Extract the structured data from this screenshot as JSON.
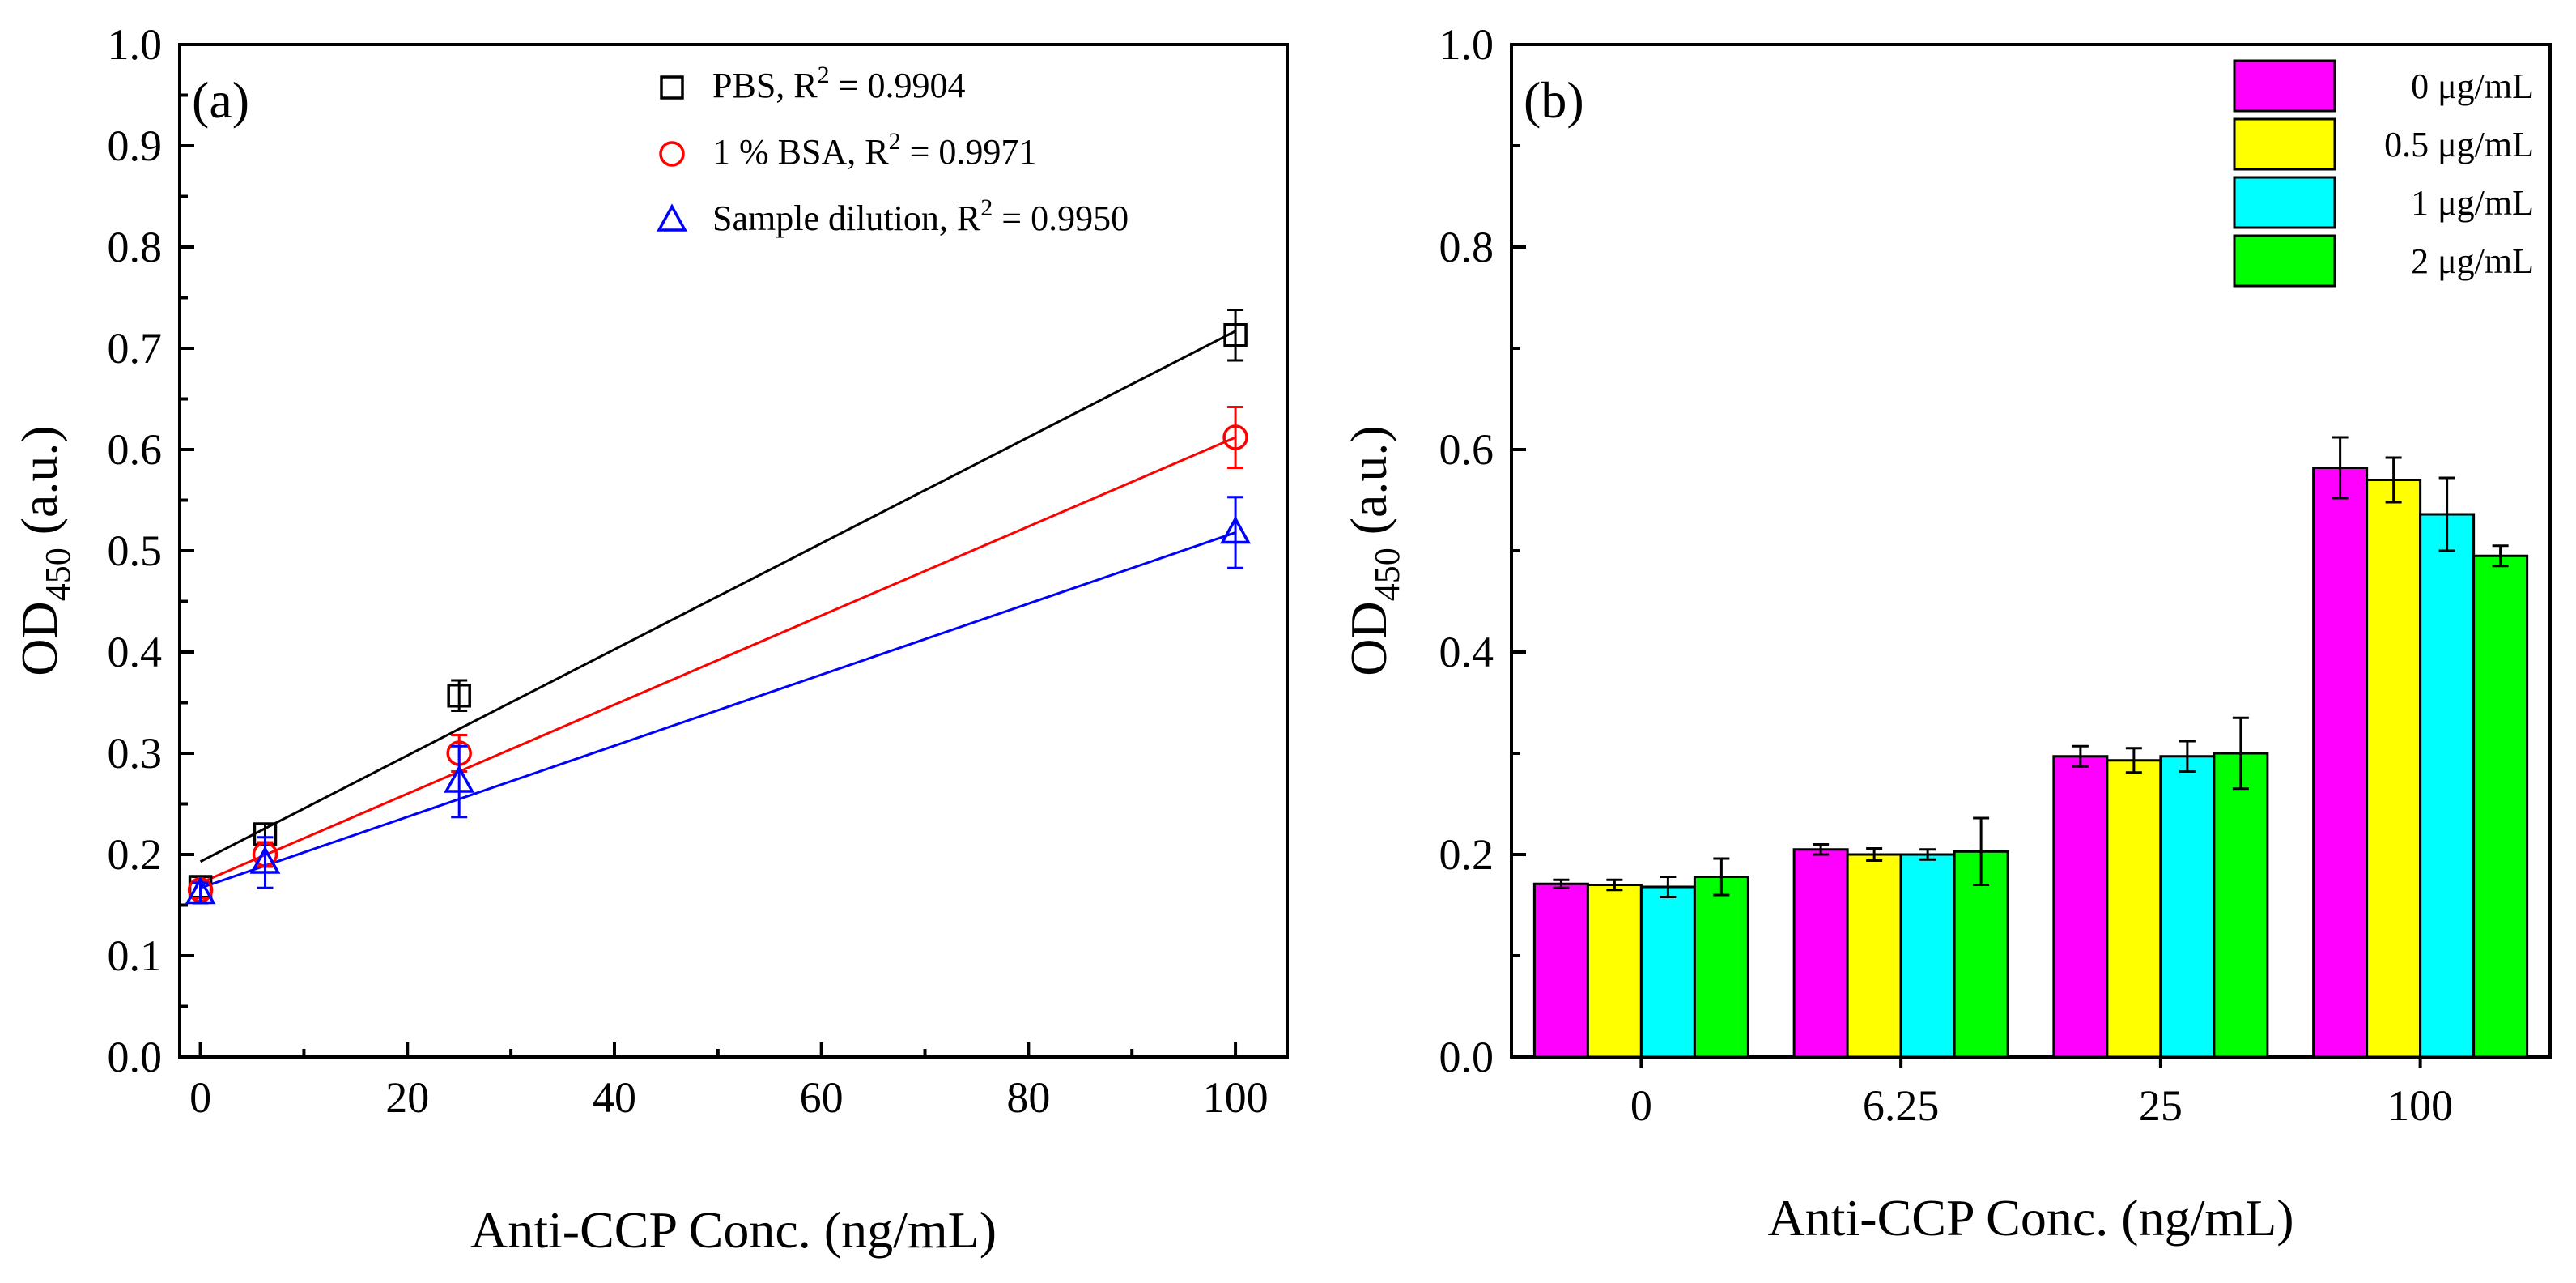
{
  "chart_data": [
    {
      "type": "scatter",
      "panel_label": "(a)",
      "title": "",
      "xlabel": "Anti-CCP Conc. (ng/mL)",
      "ylabel_main": "OD",
      "ylabel_sub": "450",
      "ylabel_unit": " (a.u.)",
      "xlim": [
        -2,
        105
      ],
      "ylim": [
        0.0,
        1.0
      ],
      "x_ticks": [
        0,
        20,
        40,
        60,
        80,
        100
      ],
      "x_tick_labels": [
        "0",
        "20",
        "40",
        "60",
        "80",
        "100"
      ],
      "y_ticks": [
        0.0,
        0.1,
        0.2,
        0.3,
        0.4,
        0.5,
        0.6,
        0.7,
        0.8,
        0.9,
        1.0
      ],
      "y_tick_labels": [
        "0.0",
        "0.1",
        "0.2",
        "0.3",
        "0.4",
        "0.5",
        "0.6",
        "0.7",
        "0.8",
        "0.9",
        "1.0"
      ],
      "legend_position": "top-right",
      "series": [
        {
          "name": "PBS",
          "r2_label": "R",
          "r2_sup": "2",
          "r2_value": " = 0.9904",
          "marker": "square",
          "color": "#000000",
          "x": [
            0,
            6.25,
            25,
            100
          ],
          "y": [
            0.168,
            0.22,
            0.357,
            0.713
          ],
          "err": [
            0.01,
            0.01,
            0.015,
            0.025
          ],
          "fit": {
            "x": [
              0,
              100
            ],
            "y": [
              0.193,
              0.717
            ]
          }
        },
        {
          "name": "1 % BSA",
          "r2_label": "R",
          "r2_sup": "2",
          "r2_value": " = 0.9971",
          "marker": "circle",
          "color": "#ff0000",
          "x": [
            0,
            6.25,
            25,
            100
          ],
          "y": [
            0.165,
            0.2,
            0.3,
            0.612
          ],
          "err": [
            0.008,
            0.012,
            0.018,
            0.03
          ],
          "fit": {
            "x": [
              0,
              100
            ],
            "y": [
              0.172,
              0.612
            ]
          }
        },
        {
          "name": "Sample dilution",
          "r2_label": "R",
          "r2_sup": "2",
          "r2_value": " = 0.9950",
          "marker": "triangle",
          "color": "#0000ff",
          "x": [
            0,
            6.25,
            25,
            100
          ],
          "y": [
            0.162,
            0.192,
            0.272,
            0.518
          ],
          "err": [
            0.01,
            0.025,
            0.035,
            0.035
          ],
          "fit": {
            "x": [
              0,
              100
            ],
            "y": [
              0.167,
              0.518
            ]
          }
        }
      ]
    },
    {
      "type": "bar",
      "panel_label": "(b)",
      "title": "",
      "xlabel": "Anti-CCP Conc. (ng/mL)",
      "ylabel_main": "OD",
      "ylabel_sub": "450",
      "ylabel_unit": " (a.u.)",
      "ylim": [
        0.0,
        1.0
      ],
      "y_ticks": [
        0.0,
        0.2,
        0.4,
        0.6,
        0.8,
        1.0
      ],
      "y_tick_labels": [
        "0.0",
        "0.2",
        "0.4",
        "0.6",
        "0.8",
        "1.0"
      ],
      "categories": [
        "0",
        "6.25",
        "25",
        "100"
      ],
      "legend_position": "top-right",
      "series": [
        {
          "name": "0 μg/mL",
          "color": "#ff00ff",
          "values": [
            0.171,
            0.205,
            0.297,
            0.582
          ],
          "err": [
            0.004,
            0.005,
            0.01,
            0.03
          ]
        },
        {
          "name": "0.5 μg/mL",
          "color": "#ffff00",
          "values": [
            0.17,
            0.2,
            0.293,
            0.57
          ],
          "err": [
            0.005,
            0.006,
            0.012,
            0.022
          ]
        },
        {
          "name": "1 μg/mL",
          "color": "#00ffff",
          "values": [
            0.168,
            0.2,
            0.297,
            0.536
          ],
          "err": [
            0.01,
            0.005,
            0.015,
            0.036
          ]
        },
        {
          "name": "2 μg/mL",
          "color": "#00ff00",
          "values": [
            0.178,
            0.203,
            0.3,
            0.495
          ],
          "err": [
            0.018,
            0.033,
            0.035,
            0.01
          ]
        }
      ]
    }
  ]
}
